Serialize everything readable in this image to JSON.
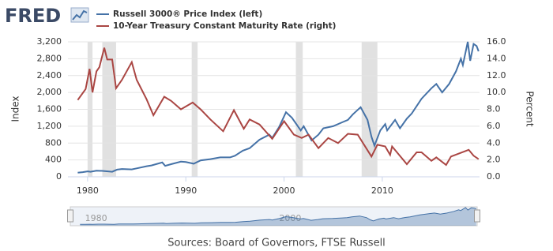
{
  "chart_data": {
    "type": "line",
    "logo": "FRED",
    "series": [
      {
        "name": "Russell 3000® Price Index (left)",
        "color": "#4572a7",
        "axis": "y",
        "x": [
          1979.0,
          1979.5,
          1980.0,
          1980.3,
          1980.9,
          1981.5,
          1982.5,
          1983.0,
          1983.5,
          1984.5,
          1985.0,
          1986.0,
          1986.5,
          1987.6,
          1987.9,
          1988.5,
          1989.5,
          1990.0,
          1990.8,
          1991.5,
          1992.5,
          1993.5,
          1994.5,
          1995.0,
          1995.8,
          1996.5,
          1997.5,
          1998.5,
          1998.8,
          1999.5,
          2000.2,
          2000.8,
          2001.7,
          2002.0,
          2002.8,
          2003.5,
          2004.0,
          2005.0,
          2006.0,
          2006.5,
          2007.0,
          2007.8,
          2008.5,
          2008.9,
          2009.2,
          2009.8,
          2010.3,
          2010.5,
          2011.3,
          2011.8,
          2012.5,
          2013.0,
          2014.0,
          2015.0,
          2015.5,
          2016.1,
          2016.8,
          2017.5,
          2018.0,
          2018.2,
          2018.7,
          2018.95,
          2019.3,
          2019.6,
          2019.8
        ],
        "values": [
          100,
          110,
          130,
          120,
          145,
          140,
          120,
          170,
          185,
          175,
          200,
          250,
          270,
          340,
          260,
          300,
          360,
          350,
          310,
          390,
          420,
          460,
          460,
          500,
          620,
          680,
          880,
          1000,
          920,
          1180,
          1530,
          1400,
          1100,
          1200,
          860,
          1000,
          1150,
          1200,
          1300,
          1350,
          1480,
          1650,
          1350,
          950,
          740,
          1100,
          1250,
          1100,
          1350,
          1150,
          1380,
          1500,
          1850,
          2100,
          2200,
          2000,
          2200,
          2500,
          2800,
          2650,
          3200,
          2750,
          3150,
          3100,
          2975
        ]
      },
      {
        "name": "10-Year Treasury Constant Maturity Rate (right)",
        "color": "#aa4643",
        "axis": "y2",
        "x": [
          1979.0,
          1979.8,
          1980.2,
          1980.5,
          1980.9,
          1981.2,
          1981.7,
          1982.0,
          1982.5,
          1982.9,
          1983.5,
          1984.5,
          1985.0,
          1986.0,
          1986.7,
          1987.8,
          1988.5,
          1989.5,
          1990.7,
          1991.5,
          1992.5,
          1993.8,
          1994.9,
          1995.9,
          1996.5,
          1997.5,
          1998.8,
          2000.0,
          2001.0,
          2001.8,
          2002.5,
          2003.5,
          2004.5,
          2005.5,
          2006.5,
          2007.5,
          2008.9,
          2009.5,
          2010.3,
          2010.8,
          2011.0,
          2012.5,
          2013.5,
          2014.0,
          2015.0,
          2015.5,
          2016.5,
          2017.0,
          2018.8,
          2019.3,
          2019.8
        ],
        "values": [
          9.1,
          10.4,
          12.8,
          10.0,
          12.5,
          13.0,
          15.3,
          13.9,
          13.9,
          10.5,
          11.5,
          13.6,
          11.5,
          9.2,
          7.3,
          9.5,
          9.0,
          8.0,
          8.8,
          8.0,
          6.8,
          5.4,
          7.9,
          5.7,
          6.8,
          6.2,
          4.5,
          6.6,
          5.0,
          4.6,
          5.0,
          3.4,
          4.6,
          4.0,
          5.1,
          5.0,
          2.4,
          3.8,
          3.6,
          2.6,
          3.6,
          1.5,
          2.9,
          2.9,
          1.9,
          2.3,
          1.4,
          2.4,
          3.2,
          2.5,
          2.1
        ]
      }
    ],
    "xlim": [
      1978.0,
      2019.9
    ],
    "xticks": [
      1980,
      1990,
      2000,
      2010
    ],
    "ylim": [
      0,
      3200
    ],
    "yticks": [
      0,
      400,
      800,
      {
        "value": 1200,
        "label": "1,200"
      },
      {
        "value": 1600,
        "label": "1,600"
      },
      {
        "value": 2000,
        "label": "2,000"
      },
      {
        "value": 2400,
        "label": "2,400"
      },
      {
        "value": 2800,
        "label": "2,800"
      },
      {
        "value": 3200,
        "label": "3,200"
      }
    ],
    "y2lim": [
      0,
      16
    ],
    "y2ticks": [
      {
        "value": 0,
        "label": "0.0"
      },
      {
        "value": 2,
        "label": "2.0"
      },
      {
        "value": 4,
        "label": "4.0"
      },
      {
        "value": 6,
        "label": "6.0"
      },
      {
        "value": 8,
        "label": "8.0"
      },
      {
        "value": 10,
        "label": "10.0"
      },
      {
        "value": 12,
        "label": "12.0"
      },
      {
        "value": 14,
        "label": "14.0"
      },
      {
        "value": 16,
        "label": "16.0"
      }
    ],
    "ylabel": "Index",
    "y2label": "Percent",
    "grid": true,
    "recessions": [
      [
        1980.0,
        1980.5
      ],
      [
        1981.5,
        1982.9
      ],
      [
        1990.6,
        1991.2
      ],
      [
        2001.2,
        2001.9
      ],
      [
        2007.9,
        2009.5
      ]
    ],
    "navigator_ticks": [
      1980,
      2000
    ],
    "source": "Sources: Board of Governors, FTSE Russell"
  }
}
